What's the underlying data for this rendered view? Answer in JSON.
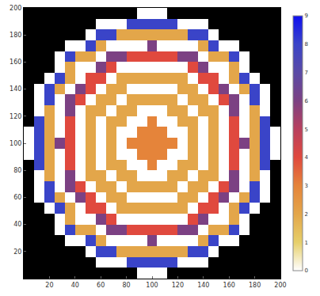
{
  "chart_data": {
    "type": "heatmap",
    "x": [
      4,
      12,
      20,
      28,
      36,
      44,
      52,
      60,
      68,
      76,
      84,
      92,
      100,
      108,
      116,
      124,
      132,
      140,
      148,
      156,
      164,
      172,
      180,
      188,
      196
    ],
    "y": [
      4,
      12,
      20,
      28,
      36,
      44,
      52,
      60,
      68,
      76,
      84,
      92,
      100,
      108,
      116,
      124,
      132,
      140,
      148,
      156,
      164,
      172,
      180,
      188,
      196
    ],
    "z": [
      [
        null,
        null,
        null,
        null,
        null,
        null,
        null,
        null,
        null,
        null,
        null,
        0,
        0,
        0,
        null,
        null,
        null,
        null,
        null,
        null,
        null,
        null,
        null,
        null,
        null
      ],
      [
        null,
        null,
        null,
        null,
        null,
        null,
        null,
        0,
        0,
        0,
        8,
        8,
        8,
        8,
        8,
        0,
        0,
        0,
        null,
        null,
        null,
        null,
        null,
        null,
        null
      ],
      [
        null,
        null,
        null,
        null,
        null,
        null,
        0,
        8,
        8,
        2,
        2,
        2,
        2,
        2,
        2,
        2,
        8,
        8,
        0,
        null,
        null,
        null,
        null,
        null,
        null
      ],
      [
        null,
        null,
        null,
        null,
        0,
        0,
        8,
        2,
        0,
        0,
        0,
        0,
        6,
        0,
        0,
        0,
        0,
        2,
        8,
        0,
        0,
        null,
        null,
        null,
        null
      ],
      [
        null,
        null,
        null,
        0,
        8,
        2,
        2,
        0,
        6,
        6,
        4,
        4,
        4,
        4,
        4,
        6,
        6,
        0,
        2,
        2,
        8,
        0,
        null,
        null,
        null
      ],
      [
        null,
        null,
        null,
        0,
        2,
        0,
        0,
        6,
        4,
        0,
        0,
        0,
        0,
        0,
        0,
        0,
        4,
        6,
        0,
        0,
        2,
        0,
        null,
        null,
        null
      ],
      [
        null,
        null,
        0,
        8,
        2,
        0,
        4,
        4,
        0,
        2,
        2,
        2,
        2,
        2,
        2,
        2,
        0,
        4,
        4,
        0,
        2,
        8,
        0,
        null,
        null
      ],
      [
        null,
        0,
        8,
        2,
        0,
        6,
        4,
        0,
        2,
        2,
        0,
        0,
        0,
        0,
        0,
        2,
        2,
        0,
        4,
        6,
        0,
        2,
        8,
        0,
        null
      ],
      [
        null,
        0,
        8,
        0,
        6,
        4,
        0,
        2,
        2,
        0,
        2,
        2,
        2,
        2,
        2,
        0,
        2,
        2,
        0,
        4,
        6,
        0,
        8,
        0,
        null
      ],
      [
        null,
        0,
        2,
        0,
        6,
        0,
        2,
        2,
        0,
        2,
        2,
        0,
        0,
        0,
        2,
        2,
        0,
        2,
        2,
        0,
        6,
        0,
        2,
        0,
        null
      ],
      [
        null,
        8,
        2,
        0,
        4,
        0,
        2,
        0,
        2,
        2,
        0,
        0,
        3,
        0,
        0,
        2,
        2,
        0,
        2,
        0,
        4,
        0,
        2,
        8,
        null
      ],
      [
        0,
        8,
        2,
        0,
        4,
        0,
        2,
        0,
        2,
        0,
        0,
        3,
        3,
        3,
        0,
        0,
        2,
        0,
        2,
        0,
        4,
        0,
        2,
        8,
        0
      ],
      [
        0,
        8,
        2,
        6,
        4,
        0,
        2,
        0,
        2,
        0,
        3,
        3,
        3,
        3,
        3,
        0,
        2,
        0,
        2,
        0,
        4,
        6,
        2,
        8,
        0
      ],
      [
        0,
        8,
        2,
        0,
        4,
        0,
        2,
        0,
        2,
        0,
        0,
        3,
        3,
        3,
        0,
        0,
        2,
        0,
        2,
        0,
        4,
        0,
        2,
        8,
        0
      ],
      [
        null,
        8,
        2,
        0,
        4,
        0,
        2,
        0,
        2,
        2,
        0,
        0,
        3,
        0,
        0,
        2,
        2,
        0,
        2,
        0,
        4,
        0,
        2,
        8,
        null
      ],
      [
        null,
        0,
        2,
        0,
        6,
        0,
        2,
        2,
        0,
        2,
        2,
        0,
        0,
        0,
        2,
        2,
        0,
        2,
        2,
        0,
        6,
        0,
        2,
        0,
        null
      ],
      [
        null,
        0,
        8,
        0,
        6,
        4,
        0,
        2,
        2,
        0,
        2,
        2,
        2,
        2,
        2,
        0,
        2,
        2,
        0,
        4,
        6,
        0,
        8,
        0,
        null
      ],
      [
        null,
        0,
        8,
        2,
        0,
        6,
        4,
        0,
        2,
        2,
        0,
        0,
        0,
        0,
        0,
        2,
        2,
        0,
        4,
        6,
        0,
        2,
        8,
        0,
        null
      ],
      [
        null,
        null,
        0,
        8,
        2,
        0,
        4,
        4,
        0,
        2,
        2,
        2,
        2,
        2,
        2,
        2,
        0,
        4,
        4,
        0,
        2,
        8,
        0,
        null,
        null
      ],
      [
        null,
        null,
        null,
        0,
        2,
        0,
        0,
        6,
        4,
        0,
        0,
        0,
        0,
        0,
        0,
        0,
        4,
        6,
        0,
        0,
        2,
        0,
        null,
        null,
        null
      ],
      [
        null,
        null,
        null,
        0,
        8,
        2,
        2,
        0,
        6,
        6,
        4,
        4,
        4,
        4,
        4,
        6,
        6,
        0,
        2,
        2,
        8,
        0,
        null,
        null,
        null
      ],
      [
        null,
        null,
        null,
        null,
        0,
        0,
        8,
        2,
        0,
        0,
        0,
        0,
        6,
        0,
        0,
        0,
        0,
        2,
        8,
        0,
        0,
        null,
        null,
        null,
        null
      ],
      [
        null,
        null,
        null,
        null,
        null,
        null,
        0,
        8,
        8,
        2,
        2,
        2,
        2,
        2,
        2,
        2,
        8,
        8,
        0,
        null,
        null,
        null,
        null,
        null,
        null
      ],
      [
        null,
        null,
        null,
        null,
        null,
        null,
        null,
        0,
        0,
        0,
        8,
        8,
        8,
        8,
        8,
        0,
        0,
        0,
        null,
        null,
        null,
        null,
        null,
        null,
        null
      ],
      [
        null,
        null,
        null,
        null,
        null,
        null,
        null,
        null,
        null,
        null,
        null,
        0,
        0,
        0,
        null,
        null,
        null,
        null,
        null,
        null,
        null,
        null,
        null,
        null,
        null
      ]
    ],
    "xlim": [
      0,
      200
    ],
    "ylim": [
      0,
      200
    ],
    "xticks": [
      20,
      40,
      60,
      80,
      100,
      120,
      140,
      160,
      180,
      200
    ],
    "yticks": [
      20,
      40,
      60,
      80,
      100,
      120,
      140,
      160,
      180,
      200
    ],
    "colorbar": {
      "range": [
        0,
        9
      ],
      "ticks": [
        0,
        1,
        2,
        3,
        4,
        5,
        6,
        7,
        8,
        9
      ]
    },
    "grid": false
  }
}
